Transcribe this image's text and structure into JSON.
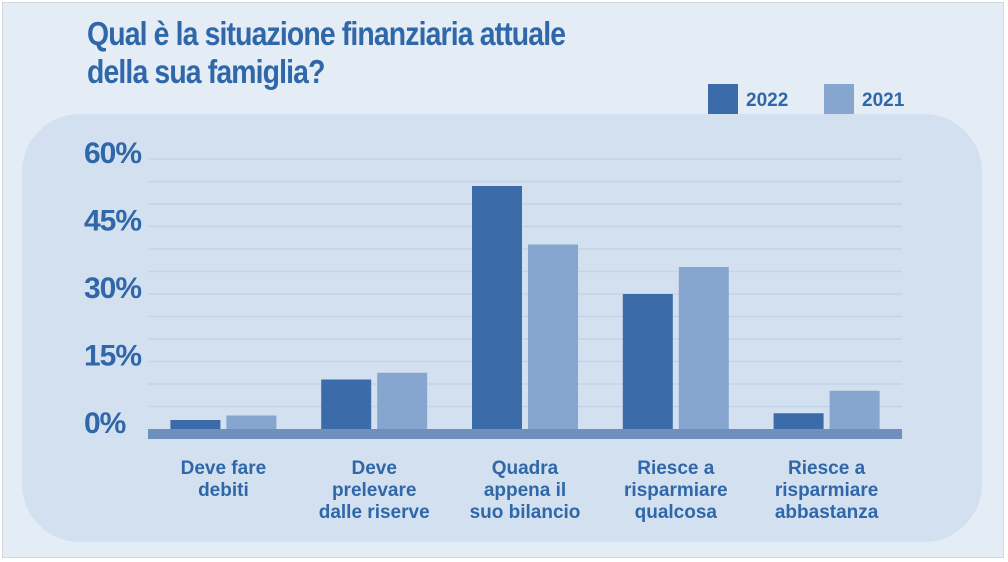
{
  "title": {
    "line1": "Qual è la situazione finanziaria attuale",
    "line2": "della sua famiglia?"
  },
  "colors": {
    "background": "#e4ecf6",
    "panel": "#d3e0f0",
    "series_2022": "#3b6ca9",
    "series_2021": "#86a6d0",
    "text": "#2f67a8",
    "gridline": "#c4d3e6",
    "axis_band": "#6f8fbd"
  },
  "chart_data": {
    "type": "bar",
    "title": "Qual è la situazione finanziaria attuale della sua famiglia?",
    "categories": [
      [
        "Deve fare",
        "debiti"
      ],
      [
        "Deve",
        "prelevare",
        "dalle riserve"
      ],
      [
        "Quadra",
        "appena il",
        "suo bilancio"
      ],
      [
        "Riesce a",
        "risparmiare",
        "qualcosa"
      ],
      [
        "Riesce a",
        "risparmiare",
        "abbastanza"
      ]
    ],
    "series": [
      {
        "name": "2022",
        "values": [
          2,
          11,
          54,
          30,
          3.5
        ]
      },
      {
        "name": "2021",
        "values": [
          3,
          12.5,
          41,
          36,
          8.5
        ]
      }
    ],
    "y_ticks": [
      0,
      15,
      30,
      45,
      60
    ],
    "y_tick_labels": [
      "0%",
      "15%",
      "30%",
      "45%",
      "60%"
    ],
    "ylim": [
      0,
      60
    ],
    "ylabel": "",
    "xlabel": "",
    "legend_position": "top-right",
    "grid": true
  }
}
